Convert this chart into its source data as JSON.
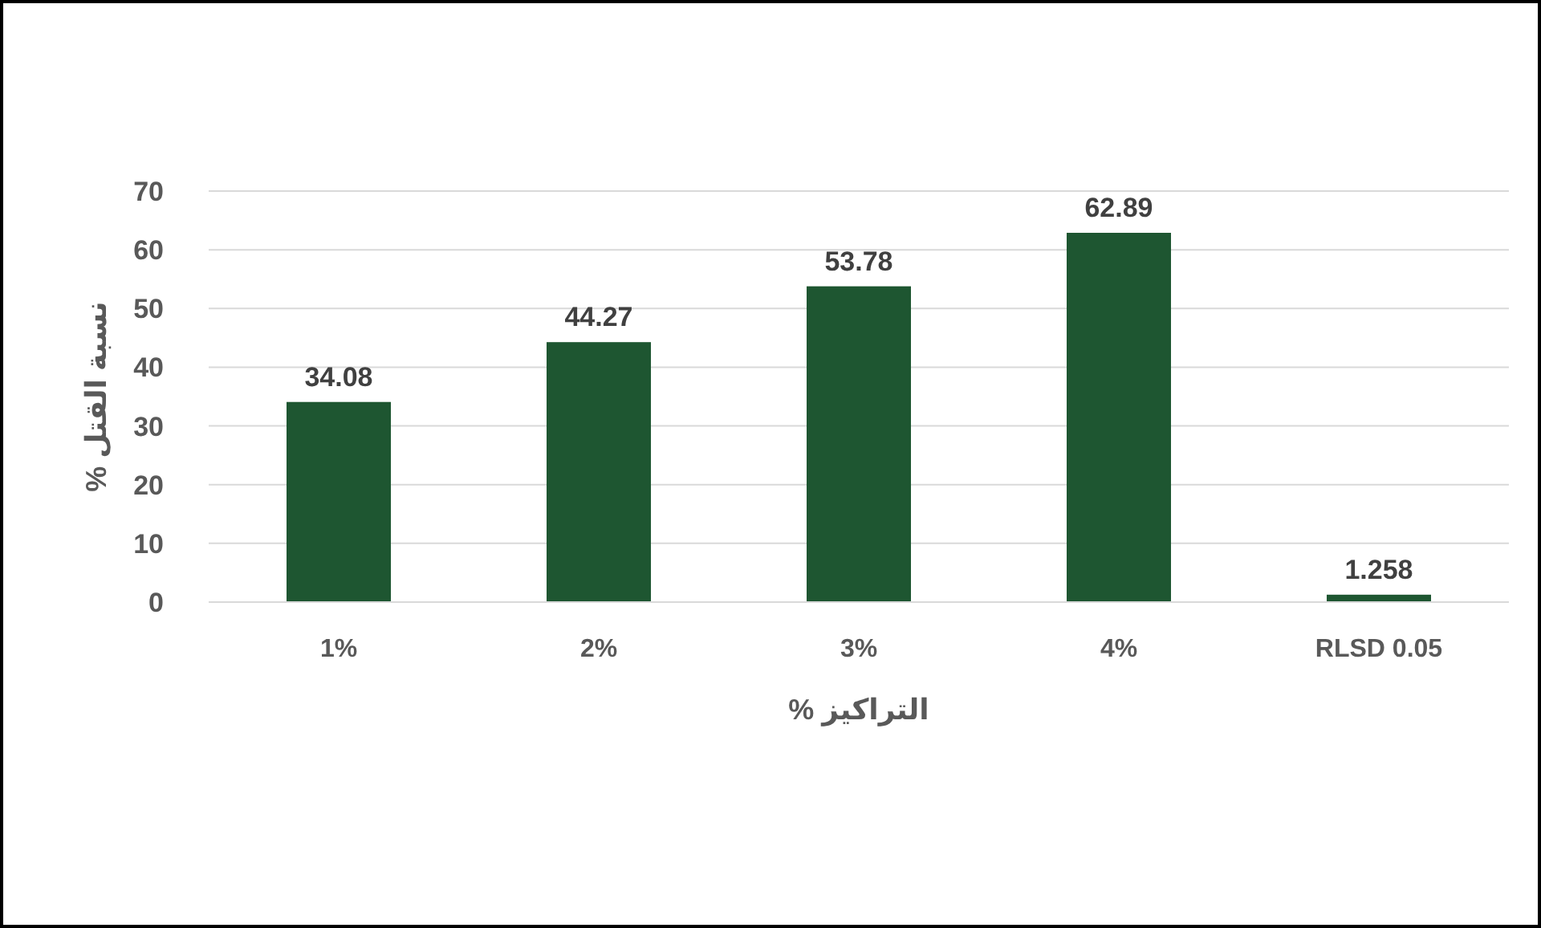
{
  "chart_data": {
    "type": "bar",
    "xlabel": "التراكيز %",
    "ylabel": "نسبة القتل %",
    "categories": [
      "1%",
      "2%",
      "3%",
      "4%",
      "RLSD 0.05"
    ],
    "values": [
      34.08,
      44.27,
      53.78,
      62.89,
      1.258
    ],
    "color": "#1e5631",
    "value_labels": [
      "34.08",
      "44.27",
      "53.78",
      "62.89",
      "1.258"
    ],
    "ylim": [
      0,
      70
    ],
    "yticks": [
      0,
      10,
      20,
      30,
      40,
      50,
      60,
      70
    ],
    "grid": "y"
  }
}
